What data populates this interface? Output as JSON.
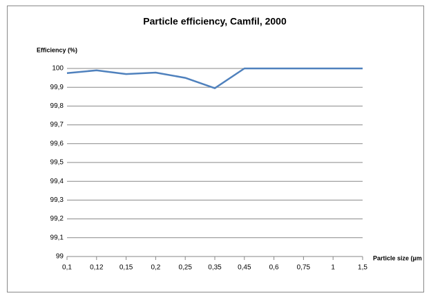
{
  "chart_data": {
    "type": "line",
    "title": "Particle efficiency, Camfil, 2000",
    "y_label": "Efficiency (%)",
    "x_label": "Particle size (µm",
    "categories": [
      "0,1",
      "0,12",
      "0,15",
      "0,2",
      "0,25",
      "0,35",
      "0,45",
      "0,6",
      "0,75",
      "1",
      "1,5"
    ],
    "series": [
      {
        "name": "Efficiency",
        "color": "#4f81bd",
        "values": [
          99.975,
          99.99,
          99.97,
          99.978,
          99.95,
          99.895,
          100,
          100,
          100,
          100,
          100
        ]
      }
    ],
    "ylim": [
      99,
      100
    ],
    "yticks": [
      99,
      {
        "value": 99.1,
        "label": "99,1"
      },
      {
        "value": 99.2,
        "label": "99,2"
      },
      {
        "value": 99.3,
        "label": "99,3"
      },
      {
        "value": 99.4,
        "label": "99,4"
      },
      {
        "value": 99.5,
        "label": "99,5"
      },
      {
        "value": 99.6,
        "label": "99,6"
      },
      {
        "value": 99.7,
        "label": "99,7"
      },
      {
        "value": 99.8,
        "label": "99,8"
      },
      {
        "value": 99.9,
        "label": "99,9"
      },
      100
    ],
    "grid": true
  }
}
